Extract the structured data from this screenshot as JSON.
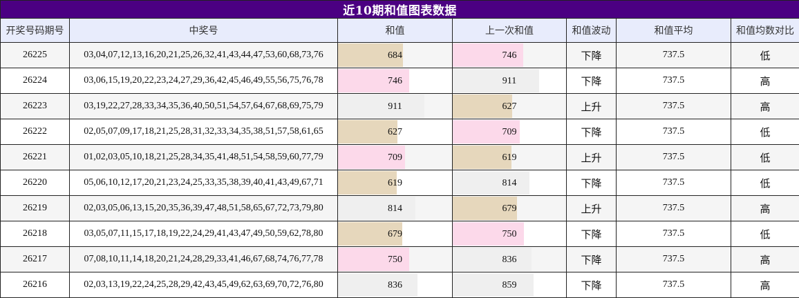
{
  "title": "近10期和值图表数据",
  "headers": [
    "开奖号码期号",
    "中奖号",
    "和值",
    "上一次和值",
    "和值波动",
    "和值平均",
    "和值均数对比"
  ],
  "colors": {
    "header_bg": "#4b0082",
    "col_header_bg": "#e8ecfc",
    "bar_pink": "#fcd9ea",
    "bar_tan": "#e6d7bc",
    "bar_gray": "#efefef",
    "bar_max": 1200
  },
  "rows": [
    {
      "issue": "26225",
      "numbers": "03,04,07,12,13,16,20,21,25,26,32,41,43,44,47,53,60,68,73,76",
      "sum": "684",
      "sum_color": "tan",
      "prev_sum": "746",
      "prev_color": "pink",
      "trend": "下降",
      "avg": "737.5",
      "compare": "低"
    },
    {
      "issue": "26224",
      "numbers": "03,06,15,19,20,22,23,24,27,29,36,42,45,46,49,55,56,75,76,78",
      "sum": "746",
      "sum_color": "pink",
      "prev_sum": "911",
      "prev_color": "gray",
      "trend": "下降",
      "avg": "737.5",
      "compare": "高"
    },
    {
      "issue": "26223",
      "numbers": "03,19,22,27,28,33,34,35,36,40,50,51,54,57,64,67,68,69,75,79",
      "sum": "911",
      "sum_color": "gray",
      "prev_sum": "627",
      "prev_color": "tan",
      "trend": "上升",
      "avg": "737.5",
      "compare": "高"
    },
    {
      "issue": "26222",
      "numbers": "02,05,07,09,17,18,21,25,28,31,32,33,34,35,38,51,57,58,61,65",
      "sum": "627",
      "sum_color": "tan",
      "prev_sum": "709",
      "prev_color": "pink",
      "trend": "下降",
      "avg": "737.5",
      "compare": "低"
    },
    {
      "issue": "26221",
      "numbers": "01,02,03,05,10,18,21,25,28,34,35,41,48,51,54,58,59,60,77,79",
      "sum": "709",
      "sum_color": "pink",
      "prev_sum": "619",
      "prev_color": "tan",
      "trend": "上升",
      "avg": "737.5",
      "compare": "低"
    },
    {
      "issue": "26220",
      "numbers": "05,06,10,12,17,20,21,23,24,25,33,35,38,39,40,41,43,49,67,71",
      "sum": "619",
      "sum_color": "tan",
      "prev_sum": "814",
      "prev_color": "gray",
      "trend": "下降",
      "avg": "737.5",
      "compare": "低"
    },
    {
      "issue": "26219",
      "numbers": "02,03,05,06,13,15,20,35,36,39,47,48,51,58,65,67,72,73,79,80",
      "sum": "814",
      "sum_color": "gray",
      "prev_sum": "679",
      "prev_color": "tan",
      "trend": "上升",
      "avg": "737.5",
      "compare": "高"
    },
    {
      "issue": "26218",
      "numbers": "03,05,07,11,15,17,18,19,22,24,29,41,43,47,49,50,59,62,78,80",
      "sum": "679",
      "sum_color": "tan",
      "prev_sum": "750",
      "prev_color": "pink",
      "trend": "下降",
      "avg": "737.5",
      "compare": "低"
    },
    {
      "issue": "26217",
      "numbers": "07,08,10,11,14,18,20,21,24,28,29,33,41,46,67,68,74,76,77,78",
      "sum": "750",
      "sum_color": "pink",
      "prev_sum": "836",
      "prev_color": "gray",
      "trend": "下降",
      "avg": "737.5",
      "compare": "高"
    },
    {
      "issue": "26216",
      "numbers": "02,03,13,19,22,24,25,28,29,42,43,45,49,62,63,69,70,72,76,80",
      "sum": "836",
      "sum_color": "gray",
      "prev_sum": "859",
      "prev_color": "gray",
      "trend": "下降",
      "avg": "737.5",
      "compare": "高"
    }
  ]
}
